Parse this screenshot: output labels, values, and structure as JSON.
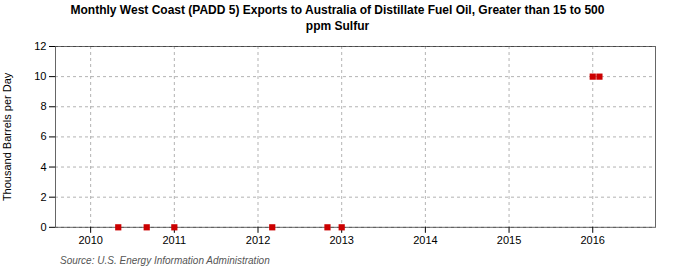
{
  "chart_data": {
    "type": "scatter",
    "title": "Monthly West Coast (PADD 5) Exports to Australia of Distillate Fuel Oil, Greater than 15 to 500\nppm Sulfur",
    "y_label": "Thousand Barrels per Day",
    "source": "Source: U.S. Energy Information Administration",
    "x": [
      2010.33,
      2010.67,
      2011.0,
      2012.17,
      2012.83,
      2013.0,
      2016.0,
      2016.08
    ],
    "values": [
      0.0,
      0.0,
      0.0,
      0.0,
      0.0,
      0.0,
      10.0,
      10.0
    ],
    "color": "#cc0000",
    "marker": "square",
    "xlim": [
      2009.58,
      2016.75
    ],
    "ylim": [
      0,
      12
    ],
    "xticks": [
      2010,
      2011,
      2012,
      2013,
      2014,
      2015,
      2016
    ],
    "yticks": [
      0,
      2,
      4,
      6,
      8,
      10,
      12
    ],
    "grid": true
  }
}
